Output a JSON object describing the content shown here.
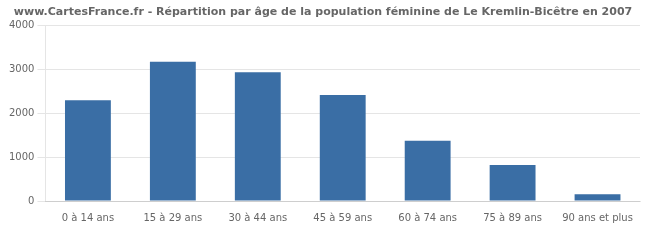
{
  "chart_data": {
    "type": "bar",
    "title": "www.CartesFrance.fr - Répartition par âge de la population féminine de Le Kremlin-Bicêtre en 2007",
    "categories": [
      "0 à 14 ans",
      "15 à 29 ans",
      "30 à 44 ans",
      "45 à 59 ans",
      "60 à 74 ans",
      "75 à 89 ans",
      "90 ans et plus"
    ],
    "values": [
      2290,
      3170,
      2930,
      2410,
      1370,
      820,
      155
    ],
    "color": "#3a6ea5",
    "ylim": [
      0,
      4000
    ],
    "yticks": [
      0,
      1000,
      2000,
      3000,
      4000
    ],
    "grid": true
  }
}
